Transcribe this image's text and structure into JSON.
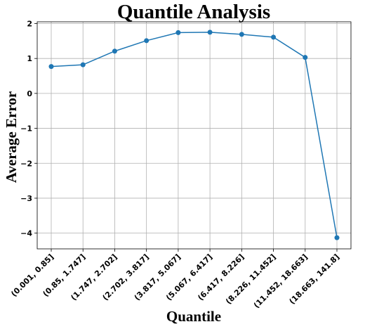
{
  "chart_data": {
    "type": "line",
    "title": "Quantile Analysis",
    "xlabel": "Quantile",
    "ylabel": "Average Error",
    "categories": [
      "(0.001, 0.85]",
      "(0.85, 1.747]",
      "(1.747, 2.702]",
      "(2.702, 3.817]",
      "(3.817, 5.067]",
      "(5.067, 6.417]",
      "(6.417, 8.226]",
      "(8.226, 11.452]",
      "(11.452, 18.663]",
      "(18.663, 141.8]"
    ],
    "series": [
      {
        "values": [
          0.77,
          0.82,
          1.21,
          1.51,
          1.74,
          1.75,
          1.69,
          1.61,
          1.03,
          -4.13
        ]
      }
    ],
    "ylim": [
      -4.45,
      2.05
    ],
    "yticks": [
      2,
      1,
      0,
      -1,
      -2,
      -3,
      -4
    ],
    "ytick_labels": [
      "2",
      "1",
      "0",
      "−1",
      "−2",
      "−3",
      "−4"
    ],
    "grid": true,
    "line_color": "#1f77b4",
    "marker": "circle"
  }
}
